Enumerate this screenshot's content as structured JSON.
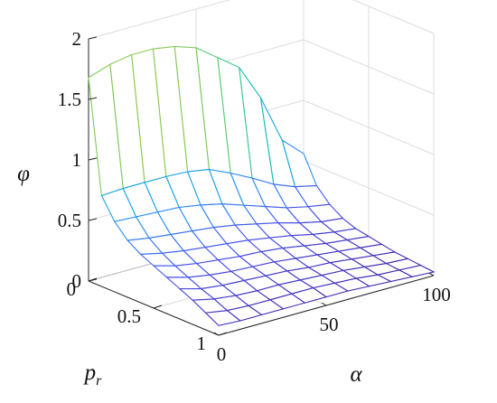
{
  "chart_data": {
    "type": "surface",
    "title": "",
    "xlabel": "α",
    "ylabel": "p",
    "ylabel_subscript": "r",
    "zlabel": "φ",
    "xlim": [
      0,
      100
    ],
    "ylim": [
      0,
      1
    ],
    "zlim": [
      0,
      2
    ],
    "xticks": [
      "0",
      "50",
      "100"
    ],
    "yticks": [
      "0",
      "0.5",
      "1"
    ],
    "zticks": [
      "0",
      "0.5",
      "1",
      "1.5",
      "2"
    ],
    "grid": true,
    "colormap": "parula",
    "alpha_values": [
      0,
      10,
      20,
      30,
      40,
      50,
      60,
      70,
      80,
      90,
      100
    ],
    "pr_values": [
      0,
      0.1,
      0.2,
      0.3,
      0.4,
      0.5,
      0.6,
      0.7,
      0.8,
      0.9,
      1.0
    ],
    "phi": [
      [
        1.68,
        1.74,
        1.77,
        1.77,
        1.74,
        1.68,
        1.55,
        1.42,
        1.12,
        0.72,
        0.56
      ],
      [
        0.75,
        0.76,
        0.76,
        0.76,
        0.75,
        0.72,
        0.64,
        0.55,
        0.45,
        0.38,
        0.34
      ],
      [
        0.58,
        0.57,
        0.56,
        0.55,
        0.52,
        0.48,
        0.42,
        0.36,
        0.3,
        0.26,
        0.23
      ],
      [
        0.47,
        0.44,
        0.42,
        0.4,
        0.38,
        0.35,
        0.31,
        0.27,
        0.22,
        0.18,
        0.16
      ],
      [
        0.4,
        0.36,
        0.33,
        0.31,
        0.29,
        0.27,
        0.24,
        0.21,
        0.17,
        0.14,
        0.12
      ],
      [
        0.35,
        0.3,
        0.27,
        0.25,
        0.23,
        0.22,
        0.2,
        0.17,
        0.14,
        0.12,
        0.1
      ],
      [
        0.3,
        0.25,
        0.22,
        0.2,
        0.19,
        0.18,
        0.16,
        0.14,
        0.12,
        0.1,
        0.08
      ],
      [
        0.25,
        0.2,
        0.18,
        0.17,
        0.16,
        0.15,
        0.13,
        0.12,
        0.1,
        0.08,
        0.06
      ],
      [
        0.2,
        0.16,
        0.14,
        0.13,
        0.13,
        0.12,
        0.11,
        0.1,
        0.08,
        0.06,
        0.05
      ],
      [
        0.14,
        0.11,
        0.1,
        0.1,
        0.1,
        0.1,
        0.09,
        0.08,
        0.06,
        0.05,
        0.04
      ],
      [
        0.08,
        0.07,
        0.07,
        0.07,
        0.07,
        0.07,
        0.07,
        0.06,
        0.05,
        0.04,
        0.03
      ]
    ]
  }
}
